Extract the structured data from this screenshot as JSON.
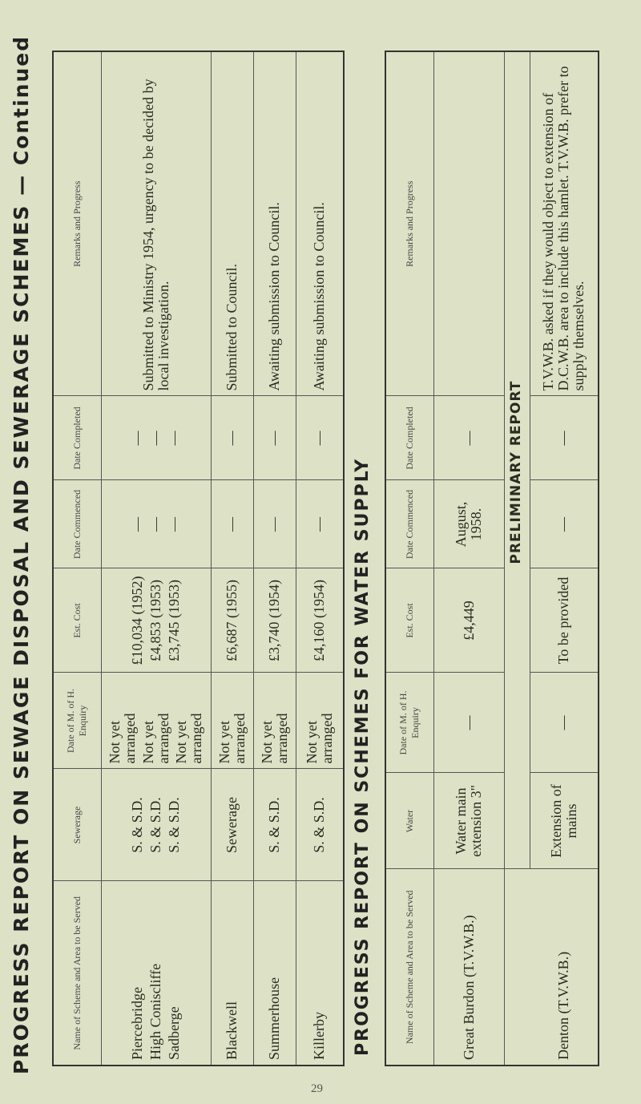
{
  "title_sewerage": "PROGRESS REPORT ON SEWAGE DISPOSAL AND SEWERAGE SCHEMES — Continued",
  "title_water": "PROGRESS REPORT ON SCHEMES FOR WATER SUPPLY",
  "sewerage_table": {
    "headers": [
      "Name of Scheme and Area to be Served",
      "Sewerage",
      "Date of M. of H. Enquiry",
      "Est. Cost",
      "Date Commenced",
      "Date Completed",
      "Remarks and Progress"
    ],
    "group": {
      "names": [
        "Piercebridge",
        "High Coniscliffe",
        "Sadberge"
      ],
      "types": [
        "S. & S.D.",
        "S. & S.D.",
        "S. & S.D."
      ],
      "enquiry": [
        "Not yet arranged",
        "Not yet arranged",
        "Not yet arranged"
      ],
      "cost": [
        "£10,034 (1952)",
        "£4,853 (1953)",
        "£3,745 (1953)"
      ],
      "commenced": [
        "—",
        "—",
        "—"
      ],
      "completed": [
        "—",
        "—",
        "—"
      ],
      "remarks": "Submitted to Ministry 1954, urgency to be decided by local investigation."
    },
    "rows": [
      {
        "name": "Blackwell",
        "type": "Sewerage",
        "enquiry": "Not yet arranged",
        "cost": "£6,687 (1955)",
        "commenced": "—",
        "completed": "—",
        "remarks": "Submitted to Council."
      },
      {
        "name": "Summerhouse",
        "type": "S. & S.D.",
        "enquiry": "Not yet arranged",
        "cost": "£3,740 (1954)",
        "commenced": "—",
        "completed": "—",
        "remarks": "Awaiting submission to Council."
      },
      {
        "name": "Killerby",
        "type": "S. & S.D.",
        "enquiry": "Not yet arranged",
        "cost": "£4,160 (1954)",
        "commenced": "—",
        "completed": "—",
        "remarks": "Awaiting submission to Council."
      }
    ]
  },
  "water_table": {
    "headers": [
      "Name of Scheme and Area to be Served",
      "Water",
      "Date of M. of H. Enquiry",
      "Est. Cost",
      "Date Commenced",
      "Date Completed",
      "Remarks and Progress"
    ],
    "rows": [
      {
        "name": "Great Burdon (T.V.W.B.)",
        "type": "Water main extension 3\"",
        "enquiry": "—",
        "cost": "£4,449",
        "commenced": "August, 1958.",
        "completed": "—",
        "remarks": ""
      }
    ],
    "preliminary_label": "PRELIMINARY REPORT",
    "preliminary_rows": [
      {
        "name": "Denton (T.V.W.B.)",
        "type": "Extension of mains",
        "enquiry": "—",
        "cost": "To be provided",
        "commenced": "—",
        "completed": "—",
        "remarks": "T.V.W.B. asked if they would object to extension of D.C.W.B. area to include this hamlet. T.V.W.B. prefer to supply themselves."
      }
    ]
  },
  "page_number": "29"
}
